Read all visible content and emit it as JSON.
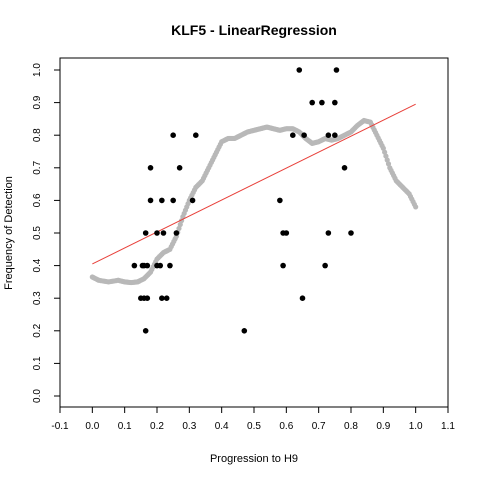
{
  "chart_data": {
    "type": "scatter",
    "title": "KLF5 - LinearRegression",
    "xlabel": "Progression to H9",
    "ylabel": "Frequency of Detection",
    "xlim": [
      -0.1,
      1.1
    ],
    "ylim": [
      0.0,
      1.0
    ],
    "xticks": [
      "-0.1",
      "0.0",
      "0.1",
      "0.2",
      "0.3",
      "0.4",
      "0.5",
      "0.6",
      "0.7",
      "0.8",
      "0.9",
      "1.0",
      "1.1"
    ],
    "yticks": [
      "0.0",
      "0.1",
      "0.2",
      "0.3",
      "0.4",
      "0.5",
      "0.6",
      "0.7",
      "0.8",
      "0.9",
      "1.0"
    ],
    "grid": false,
    "points_color": "#000000",
    "smooth_color": "#b8b8b8",
    "line_color": "#e8403a",
    "points": [
      [
        0.13,
        0.4
      ],
      [
        0.155,
        0.4
      ],
      [
        0.15,
        0.3
      ],
      [
        0.16,
        0.3
      ],
      [
        0.17,
        0.3
      ],
      [
        0.165,
        0.2
      ],
      [
        0.16,
        0.4
      ],
      [
        0.17,
        0.4
      ],
      [
        0.165,
        0.5
      ],
      [
        0.18,
        0.7
      ],
      [
        0.18,
        0.6
      ],
      [
        0.2,
        0.4
      ],
      [
        0.2,
        0.5
      ],
      [
        0.21,
        0.4
      ],
      [
        0.215,
        0.6
      ],
      [
        0.215,
        0.3
      ],
      [
        0.22,
        0.5
      ],
      [
        0.23,
        0.3
      ],
      [
        0.24,
        0.4
      ],
      [
        0.25,
        0.6
      ],
      [
        0.25,
        0.8
      ],
      [
        0.26,
        0.5
      ],
      [
        0.27,
        0.7
      ],
      [
        0.31,
        0.6
      ],
      [
        0.32,
        0.8
      ],
      [
        0.47,
        0.2
      ],
      [
        0.58,
        0.6
      ],
      [
        0.59,
        0.4
      ],
      [
        0.59,
        0.5
      ],
      [
        0.6,
        0.5
      ],
      [
        0.62,
        0.8
      ],
      [
        0.64,
        1.0
      ],
      [
        0.65,
        0.3
      ],
      [
        0.655,
        0.8
      ],
      [
        0.68,
        0.9
      ],
      [
        0.71,
        0.9
      ],
      [
        0.72,
        0.4
      ],
      [
        0.73,
        0.5
      ],
      [
        0.73,
        0.8
      ],
      [
        0.75,
        0.8
      ],
      [
        0.75,
        0.9
      ],
      [
        0.755,
        1.0
      ],
      [
        0.78,
        0.7
      ],
      [
        0.8,
        0.5
      ]
    ],
    "smooth": [
      [
        0.0,
        0.365
      ],
      [
        0.02,
        0.355
      ],
      [
        0.05,
        0.35
      ],
      [
        0.08,
        0.355
      ],
      [
        0.1,
        0.35
      ],
      [
        0.12,
        0.348
      ],
      [
        0.14,
        0.35
      ],
      [
        0.16,
        0.36
      ],
      [
        0.18,
        0.38
      ],
      [
        0.2,
        0.42
      ],
      [
        0.22,
        0.44
      ],
      [
        0.24,
        0.45
      ],
      [
        0.26,
        0.49
      ],
      [
        0.28,
        0.55
      ],
      [
        0.3,
        0.6
      ],
      [
        0.32,
        0.64
      ],
      [
        0.34,
        0.66
      ],
      [
        0.36,
        0.7
      ],
      [
        0.38,
        0.74
      ],
      [
        0.4,
        0.78
      ],
      [
        0.42,
        0.79
      ],
      [
        0.44,
        0.79
      ],
      [
        0.46,
        0.8
      ],
      [
        0.48,
        0.81
      ],
      [
        0.5,
        0.815
      ],
      [
        0.52,
        0.82
      ],
      [
        0.54,
        0.825
      ],
      [
        0.56,
        0.82
      ],
      [
        0.58,
        0.815
      ],
      [
        0.6,
        0.82
      ],
      [
        0.62,
        0.82
      ],
      [
        0.64,
        0.81
      ],
      [
        0.66,
        0.79
      ],
      [
        0.68,
        0.775
      ],
      [
        0.7,
        0.78
      ],
      [
        0.72,
        0.79
      ],
      [
        0.74,
        0.785
      ],
      [
        0.76,
        0.79
      ],
      [
        0.78,
        0.8
      ],
      [
        0.8,
        0.81
      ],
      [
        0.82,
        0.83
      ],
      [
        0.84,
        0.845
      ],
      [
        0.86,
        0.84
      ],
      [
        0.88,
        0.8
      ],
      [
        0.9,
        0.76
      ],
      [
        0.92,
        0.7
      ],
      [
        0.94,
        0.66
      ],
      [
        0.96,
        0.64
      ],
      [
        0.98,
        0.62
      ],
      [
        1.0,
        0.58
      ]
    ],
    "regression": [
      [
        0.0,
        0.405
      ],
      [
        1.0,
        0.895
      ]
    ]
  }
}
